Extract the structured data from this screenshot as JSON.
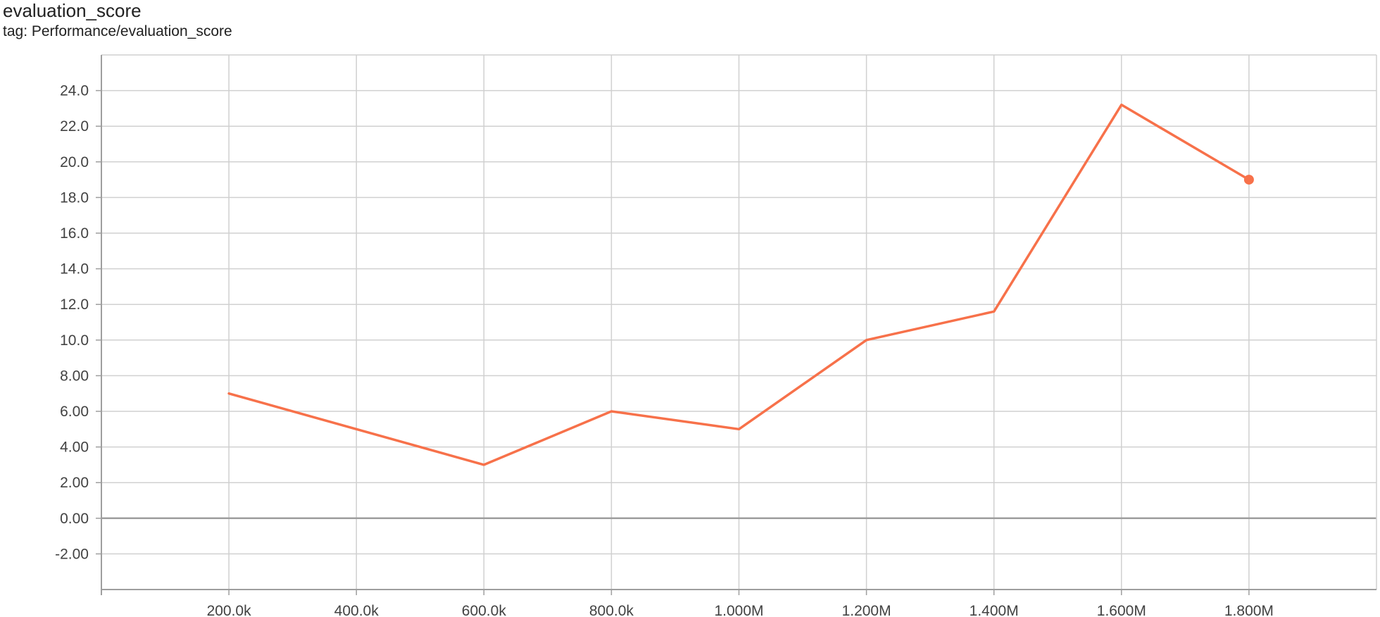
{
  "header": {
    "title": "evaluation_score",
    "tag": "tag: Performance/evaluation_score"
  },
  "colors": {
    "series": "#f7714a",
    "grid": "#d0d0d0",
    "axis": "#9e9e9e",
    "zero_line": "#9e9e9e",
    "tick_text": "#424242"
  },
  "chart_data": {
    "type": "line",
    "title": "evaluation_score",
    "subtitle": "tag: Performance/evaluation_score",
    "xlabel": "",
    "ylabel": "",
    "xlim": [
      0,
      2000000
    ],
    "ylim": [
      -4,
      26
    ],
    "grid": true,
    "legend": "none",
    "x_ticks": [
      {
        "value": 200000,
        "label": "200.0k"
      },
      {
        "value": 400000,
        "label": "400.0k"
      },
      {
        "value": 600000,
        "label": "600.0k"
      },
      {
        "value": 800000,
        "label": "800.0k"
      },
      {
        "value": 1000000,
        "label": "1.000M"
      },
      {
        "value": 1200000,
        "label": "1.200M"
      },
      {
        "value": 1400000,
        "label": "1.400M"
      },
      {
        "value": 1600000,
        "label": "1.600M"
      },
      {
        "value": 1800000,
        "label": "1.800M"
      }
    ],
    "y_ticks": [
      {
        "value": -2,
        "label": "-2.00"
      },
      {
        "value": 0,
        "label": "0.00"
      },
      {
        "value": 2,
        "label": "2.00"
      },
      {
        "value": 4,
        "label": "4.00"
      },
      {
        "value": 6,
        "label": "6.00"
      },
      {
        "value": 8,
        "label": "8.00"
      },
      {
        "value": 10,
        "label": "10.0"
      },
      {
        "value": 12,
        "label": "12.0"
      },
      {
        "value": 14,
        "label": "14.0"
      },
      {
        "value": 16,
        "label": "16.0"
      },
      {
        "value": 18,
        "label": "18.0"
      },
      {
        "value": 20,
        "label": "20.0"
      },
      {
        "value": 22,
        "label": "22.0"
      },
      {
        "value": 24,
        "label": "24.0"
      }
    ],
    "series": [
      {
        "x": [
          200000,
          400000,
          600000,
          800000,
          1000000,
          1200000,
          1400000,
          1600000,
          1800000
        ],
        "values": [
          7.0,
          5.0,
          3.0,
          6.0,
          5.0,
          10.0,
          11.6,
          23.2,
          19.0
        ]
      }
    ]
  }
}
